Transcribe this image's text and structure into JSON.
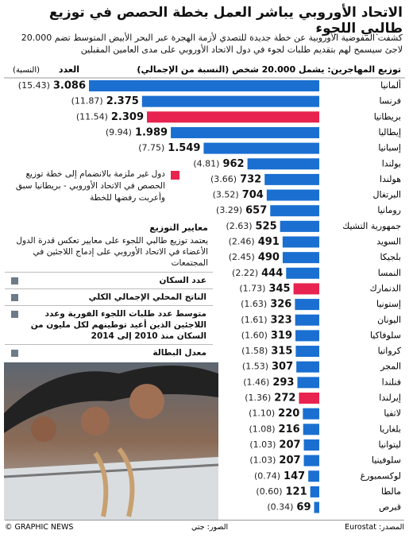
{
  "header": {
    "title": "الاتحاد الأوروبي يباشر العمل بخطة الحصص في توزيع طالبي اللجوء",
    "subtitle": "كشفت المفوضية الأوروبية عن خطة جديدة للتصدي لأزمة الهجرة عبر البحر الأبيض المتوسط تضم 20.000 لاجئ سيسمح لهم بتقديم طلبات لجوء في دول الاتحاد الأوروبي على مدى العامين المقبلين"
  },
  "chart_data": {
    "type": "bar",
    "orientation": "horizontal",
    "heading": "توزيع المهاجرين: يشمل 20.000 شخص (النسبة من الإجمالي)",
    "value_heading": "العدد",
    "share_heading": "(النسبة)",
    "categories": [
      "ألمانيا",
      "فرنسا",
      "بريطانيا",
      "إيطاليا",
      "إسبانيا",
      "بولندا",
      "هولندا",
      "البرتغال",
      "رومانيا",
      "جمهورية التشيك",
      "السويد",
      "بلجيكا",
      "النمسا",
      "الدنمارك",
      "إستونيا",
      "اليونان",
      "سلوفاكيا",
      "كرواتيا",
      "المجر",
      "فنلندا",
      "إيرلندا",
      "لاتفيا",
      "بلغاريا",
      "ليتوانيا",
      "سلوفينيا",
      "لوكسمبورغ",
      "مالطا",
      "قبرص"
    ],
    "values": [
      3086,
      2375,
      2309,
      1989,
      1549,
      962,
      732,
      704,
      657,
      525,
      491,
      490,
      444,
      345,
      326,
      323,
      319,
      315,
      307,
      293,
      272,
      220,
      216,
      207,
      207,
      147,
      121,
      69
    ],
    "value_labels": [
      "3.086",
      "2.375",
      "2.309",
      "1.989",
      "1.549",
      "962",
      "732",
      "704",
      "657",
      "525",
      "491",
      "490",
      "444",
      "345",
      "326",
      "323",
      "319",
      "315",
      "307",
      "293",
      "272",
      "220",
      "216",
      "207",
      "207",
      "147",
      "121",
      "69"
    ],
    "share_labels": [
      "(15.43)",
      "(11.87)",
      "(11.54)",
      "(9.94)",
      "(7.75)",
      "(4.81)",
      "(3.66)",
      "(3.52)",
      "(3.29)",
      "(2.63)",
      "(2.46)",
      "(2.45)",
      "(2.22)",
      "(1.73)",
      "(1.63)",
      "(1.61)",
      "(1.60)",
      "(1.58)",
      "(1.53)",
      "(1.46)",
      "(1.36)",
      "(1.10)",
      "(1.08)",
      "(1.03)",
      "(1.03)",
      "(0.74)",
      "(0.60)",
      "(0.34)"
    ],
    "colors": [
      "#1a6fd1",
      "#1a6fd1",
      "#e8234f",
      "#1a6fd1",
      "#1a6fd1",
      "#1a6fd1",
      "#1a6fd1",
      "#1a6fd1",
      "#1a6fd1",
      "#1a6fd1",
      "#1a6fd1",
      "#1a6fd1",
      "#1a6fd1",
      "#e8234f",
      "#1a6fd1",
      "#1a6fd1",
      "#1a6fd1",
      "#1a6fd1",
      "#1a6fd1",
      "#1a6fd1",
      "#e8234f",
      "#1a6fd1",
      "#1a6fd1",
      "#1a6fd1",
      "#1a6fd1",
      "#1a6fd1",
      "#1a6fd1",
      "#1a6fd1"
    ]
  },
  "legend": {
    "color": "#e8234f",
    "text": "دول غير ملزمة بالانضمام إلى خطة توزيع الحصص في الاتحاد الأوروبي - بريطانيا سبق وأعربت رفضها للخطة"
  },
  "criteria": {
    "title": "معايير التوزيع",
    "description": "يعتمد توزيع طالبي اللجوء على معايير تعكس قدرة الدول الأعضاء في الاتحاد الأوروبي على إدماج اللاجئين في المجتمعات",
    "items": [
      {
        "text": "عدد السكان",
        "color": "#6d7b88"
      },
      {
        "text": "الناتج المحلي الإجمالي الكلي",
        "color": "#6d7b88"
      },
      {
        "text": "متوسط عدد طلبات اللجوء الفورية وعدد اللاجئين الذين أعيد توطينهم لكل مليون من السكان منذ 2010 إلى 2014",
        "color": "#6d7b88"
      },
      {
        "text": "معدل البطالة",
        "color": "#6d7b88"
      }
    ]
  },
  "footer": {
    "credit": "© GRAPHIC NEWS",
    "photo": "الصور: جتي",
    "source": "المصدر: Eurostat"
  }
}
